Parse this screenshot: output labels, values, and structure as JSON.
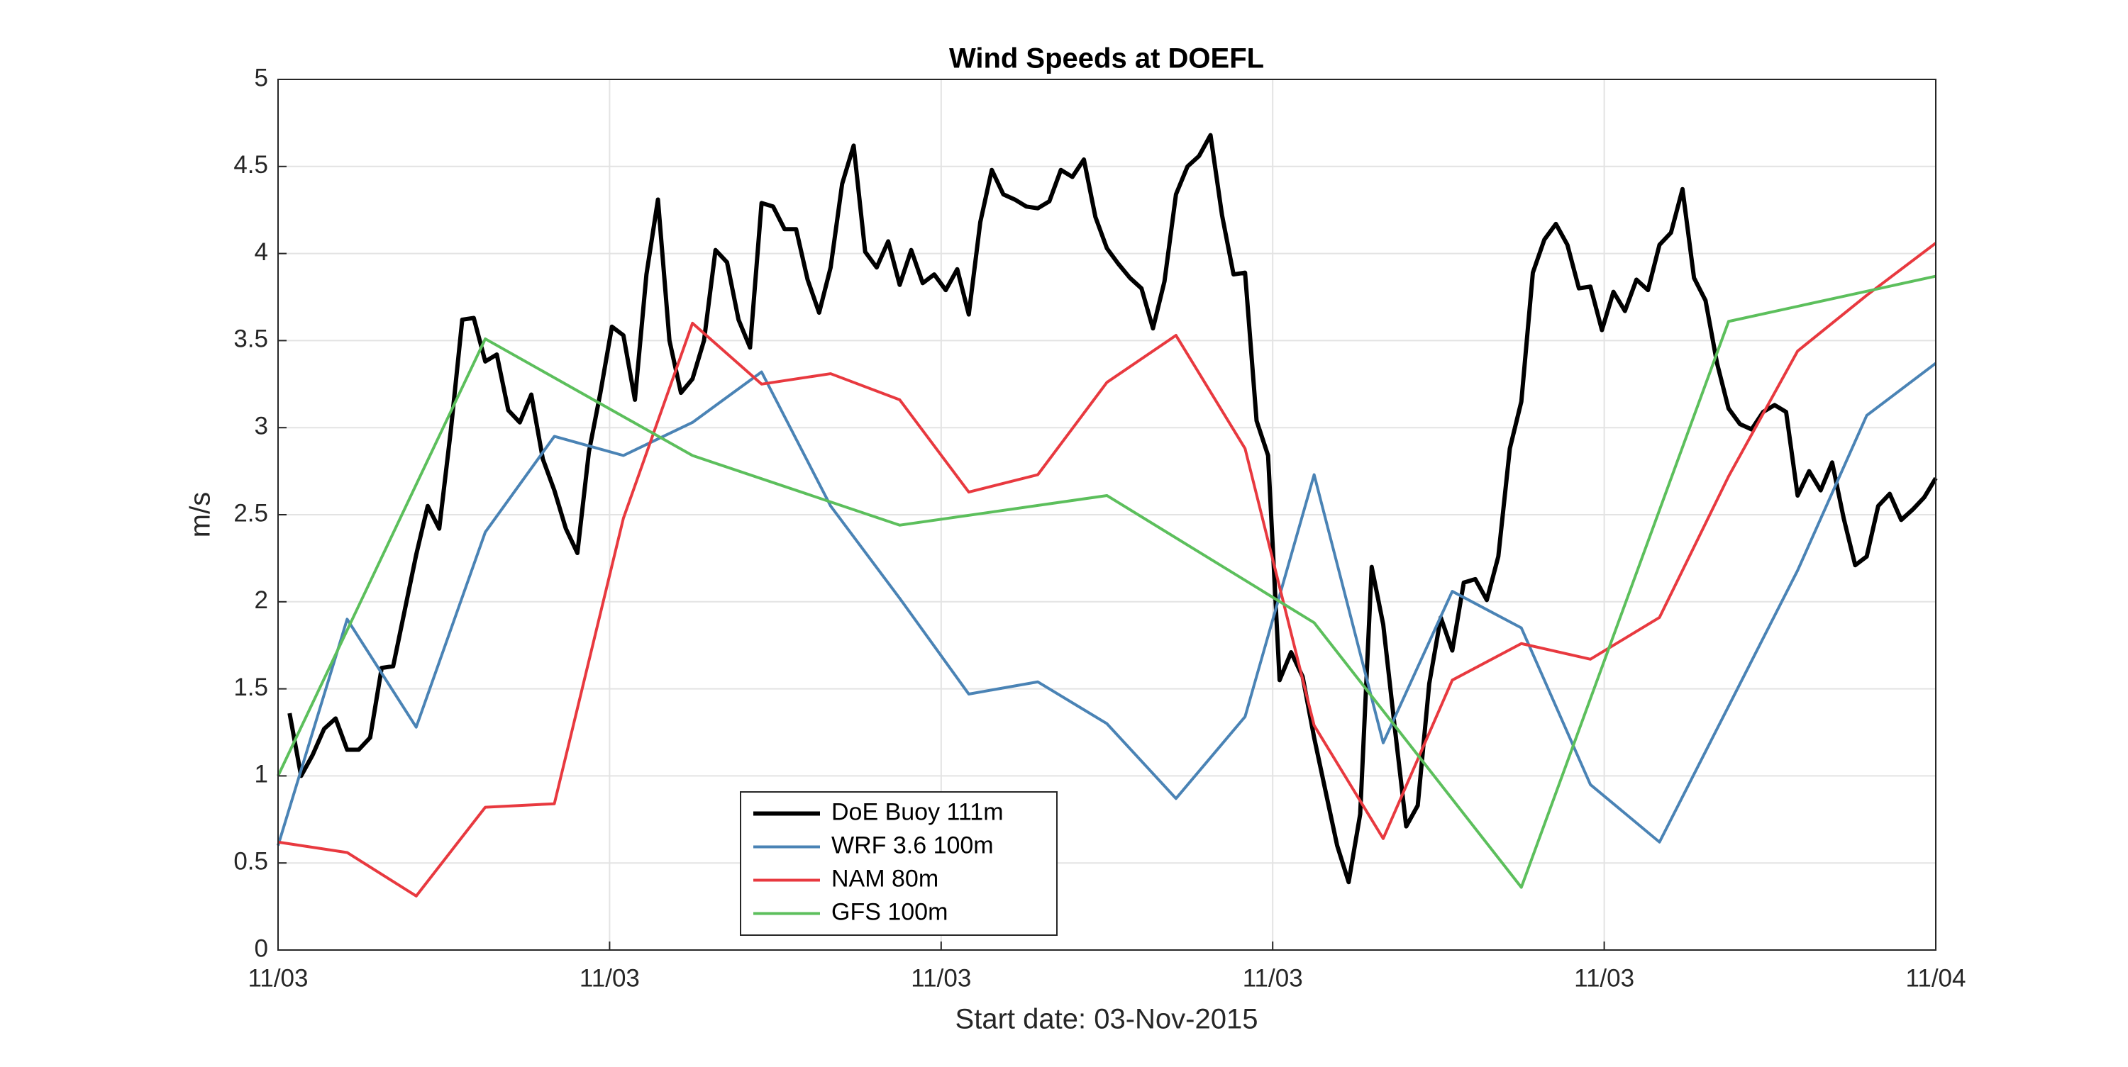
{
  "chart_data": {
    "type": "line",
    "title": "Wind Speeds at DOEFL",
    "x_label": "Start date: 03-Nov-2015",
    "y_label": "m/s",
    "xlim": [
      0,
      1440
    ],
    "xticks": [
      {
        "value": 0,
        "label": "11/03"
      },
      {
        "value": 288,
        "label": "11/03"
      },
      {
        "value": 576,
        "label": "11/03"
      },
      {
        "value": 864,
        "label": "11/03"
      },
      {
        "value": 1152,
        "label": "11/03"
      },
      {
        "value": 1440,
        "label": "11/04"
      }
    ],
    "ylim": [
      0,
      5
    ],
    "yticks": [
      0,
      0.5,
      1,
      1.5,
      2,
      2.5,
      3,
      3.5,
      4,
      4.5,
      5
    ],
    "grid": true,
    "legend": "bottom",
    "series": [
      {
        "name": "DoE Buoy 111m",
        "color": "#000000",
        "line_width": 6,
        "x": [
          10,
          20,
          30,
          40,
          50,
          60,
          70,
          80,
          90,
          100,
          110,
          120,
          130,
          140,
          150,
          160,
          170,
          180,
          190,
          200,
          210,
          220,
          230,
          240,
          250,
          260,
          270,
          280,
          290,
          300,
          310,
          320,
          330,
          340,
          350,
          360,
          370,
          380,
          390,
          400,
          410,
          420,
          430,
          440,
          450,
          460,
          470,
          480,
          490,
          500,
          510,
          520,
          530,
          540,
          550,
          560,
          570,
          580,
          590,
          600,
          610,
          620,
          630,
          640,
          650,
          660,
          670,
          680,
          690,
          700,
          710,
          720,
          730,
          740,
          750,
          760,
          770,
          780,
          790,
          800,
          810,
          820,
          830,
          840,
          850,
          860,
          870,
          880,
          890,
          900,
          910,
          920,
          930,
          940,
          950,
          960,
          970,
          980,
          990,
          1000,
          1010,
          1020,
          1030,
          1040,
          1050,
          1060,
          1070,
          1080,
          1090,
          1100,
          1110,
          1120,
          1130,
          1140,
          1150,
          1160,
          1170,
          1180,
          1190,
          1200,
          1210,
          1220,
          1230,
          1240,
          1250,
          1260,
          1270,
          1280,
          1290,
          1300,
          1310,
          1320,
          1330,
          1340,
          1350,
          1360,
          1370,
          1380,
          1390,
          1400,
          1410,
          1420,
          1430,
          1440
        ],
        "values": [
          1.36,
          1.0,
          1.12,
          1.27,
          1.33,
          1.15,
          1.15,
          1.22,
          1.62,
          1.63,
          1.95,
          2.27,
          2.55,
          2.42,
          2.98,
          3.62,
          3.63,
          3.38,
          3.42,
          3.1,
          3.03,
          3.19,
          2.82,
          2.64,
          2.42,
          2.28,
          2.86,
          3.2,
          3.58,
          3.53,
          3.16,
          3.88,
          4.31,
          3.5,
          3.2,
          3.28,
          3.5,
          4.02,
          3.95,
          3.62,
          3.46,
          4.29,
          4.27,
          4.14,
          4.14,
          3.85,
          3.66,
          3.92,
          4.4,
          4.62,
          4.01,
          3.92,
          4.07,
          3.82,
          4.02,
          3.83,
          3.88,
          3.79,
          3.91,
          3.65,
          4.18,
          4.48,
          4.34,
          4.31,
          4.27,
          4.26,
          4.3,
          4.48,
          4.44,
          4.54,
          4.21,
          4.03,
          3.94,
          3.86,
          3.8,
          3.57,
          3.84,
          4.34,
          4.5,
          4.56,
          4.68,
          4.22,
          3.88,
          3.89,
          3.04,
          2.84,
          1.55,
          1.71,
          1.57,
          1.22,
          0.91,
          0.6,
          0.39,
          0.78,
          2.2,
          1.87,
          1.28,
          0.71,
          0.83,
          1.53,
          1.91,
          1.72,
          2.11,
          2.13,
          2.01,
          2.26,
          2.88,
          3.15,
          3.89,
          4.08,
          4.17,
          4.05,
          3.8,
          3.81,
          3.56,
          3.78,
          3.67,
          3.85,
          3.79,
          4.05,
          4.12,
          4.37,
          3.86,
          3.73,
          3.37,
          3.11,
          3.02,
          2.99,
          3.09,
          3.13,
          3.09,
          2.61,
          2.75,
          2.64,
          2.8,
          2.48,
          2.21,
          2.26,
          2.55,
          2.62,
          2.47,
          2.53,
          2.6,
          2.71
        ]
      },
      {
        "name": "WRF 3.6 100m",
        "color": "#4a83b5",
        "line_width": 4,
        "x": [
          0,
          60,
          120,
          180,
          240,
          300,
          360,
          420,
          480,
          540,
          600,
          660,
          720,
          780,
          840,
          900,
          960,
          1020,
          1080,
          1140,
          1200,
          1260,
          1320,
          1380,
          1440
        ],
        "values": [
          0.6,
          1.9,
          1.28,
          2.4,
          2.95,
          2.84,
          3.03,
          3.32,
          2.55,
          2.02,
          1.47,
          1.54,
          1.3,
          0.87,
          1.34,
          2.73,
          1.19,
          2.06,
          1.85,
          0.95,
          0.62,
          1.4,
          2.18,
          3.07,
          3.37
        ]
      },
      {
        "name": "NAM 80m",
        "color": "#e8393f",
        "line_width": 4,
        "x": [
          0,
          60,
          120,
          180,
          240,
          300,
          360,
          420,
          480,
          540,
          600,
          660,
          720,
          780,
          840,
          900,
          960,
          1020,
          1080,
          1140,
          1200,
          1260,
          1320,
          1380,
          1440
        ],
        "values": [
          0.62,
          0.56,
          0.31,
          0.82,
          0.84,
          2.48,
          3.6,
          3.25,
          3.31,
          3.16,
          2.63,
          2.73,
          3.26,
          3.53,
          2.88,
          1.29,
          0.64,
          1.55,
          1.76,
          1.67,
          1.91,
          2.72,
          3.44,
          3.76,
          4.06
        ]
      },
      {
        "name": "GFS 100m",
        "color": "#5cbf5c",
        "line_width": 4,
        "x": [
          0,
          180,
          360,
          540,
          720,
          900,
          1080,
          1260,
          1440
        ],
        "values": [
          1.0,
          3.51,
          2.84,
          2.44,
          2.61,
          1.88,
          0.36,
          3.61,
          3.87
        ]
      }
    ]
  }
}
